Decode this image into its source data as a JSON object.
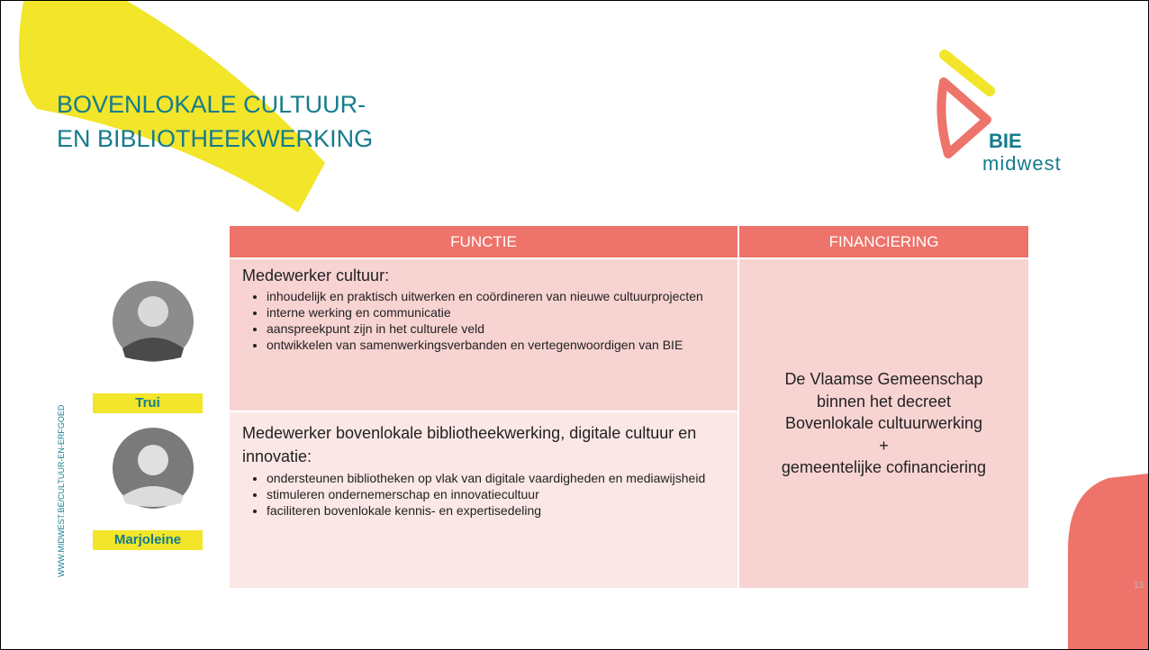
{
  "header": {
    "title_lines": [
      "BOVENLOKALE CULTUUR-",
      "EN BIBLIOTHEEKWERKING"
    ],
    "logo": {
      "brand": "BIE",
      "region": "midwest"
    }
  },
  "side_url": "WWW.MIDWEST.BE/CULTUUR-EN-ERFGOED",
  "people": [
    {
      "name": "Trui"
    },
    {
      "name": "Marjoleine"
    }
  ],
  "table": {
    "headers": [
      "FUNCTIE",
      "FINANCIERING"
    ],
    "rows": [
      {
        "title": "Medewerker cultuur:",
        "bullets": [
          "inhoudelijk en praktisch uitwerken en coördineren van nieuwe cultuurprojecten",
          "interne werking en communicatie",
          "aanspreekpunt zijn in het culturele veld",
          "ontwikkelen van samenwerkingsverbanden en vertegenwoordigen van BIE"
        ]
      },
      {
        "title": "Medewerker bovenlokale bibliotheekwerking, digitale cultuur en innovatie:",
        "bullets": [
          "ondersteunen bibliotheken op vlak van digitale vaardigheden en mediawijsheid",
          "stimuleren ondernemerschap en innovatiecultuur",
          "faciliteren bovenlokale kennis- en expertisedeling"
        ]
      }
    ],
    "financing_lines": [
      "De Vlaamse Gemeenschap",
      "binnen het decreet",
      "Bovenlokale cultuurwerking",
      "+",
      "gemeentelijke cofinanciering"
    ]
  },
  "page_number": "13"
}
